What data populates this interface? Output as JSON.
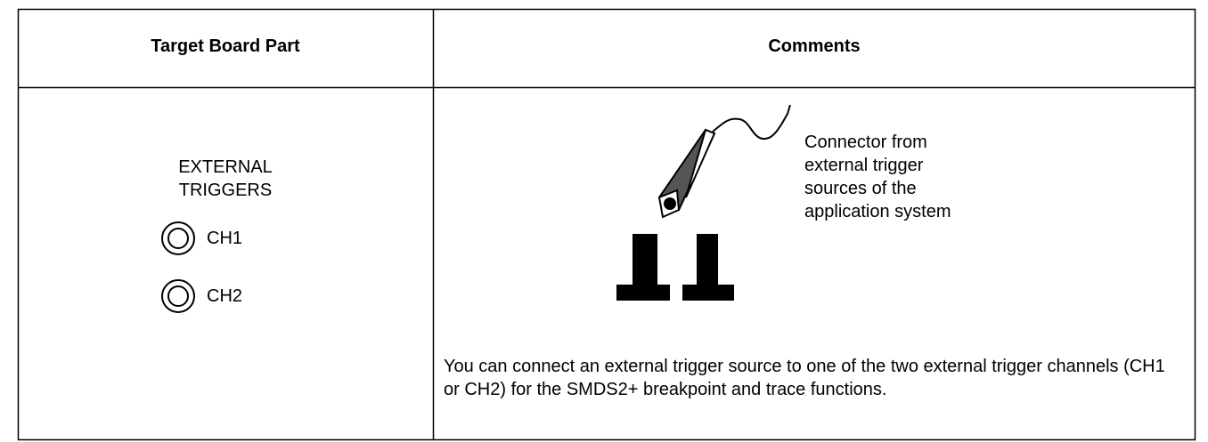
{
  "table": {
    "headers": [
      "Target Board Part",
      "Comments"
    ],
    "left": {
      "label_lines": [
        "EXTERNAL",
        "TRIGGERS"
      ],
      "channels": [
        "CH1",
        "CH2"
      ]
    },
    "right": {
      "callout_lines": [
        "Connector from",
        "external trigger",
        "sources of the",
        "application system"
      ],
      "description": "You can connect an external trigger source to one of the two external trigger channels (CH1 or CH2) for the SMDS2+ breakpoint and trace functions."
    }
  }
}
